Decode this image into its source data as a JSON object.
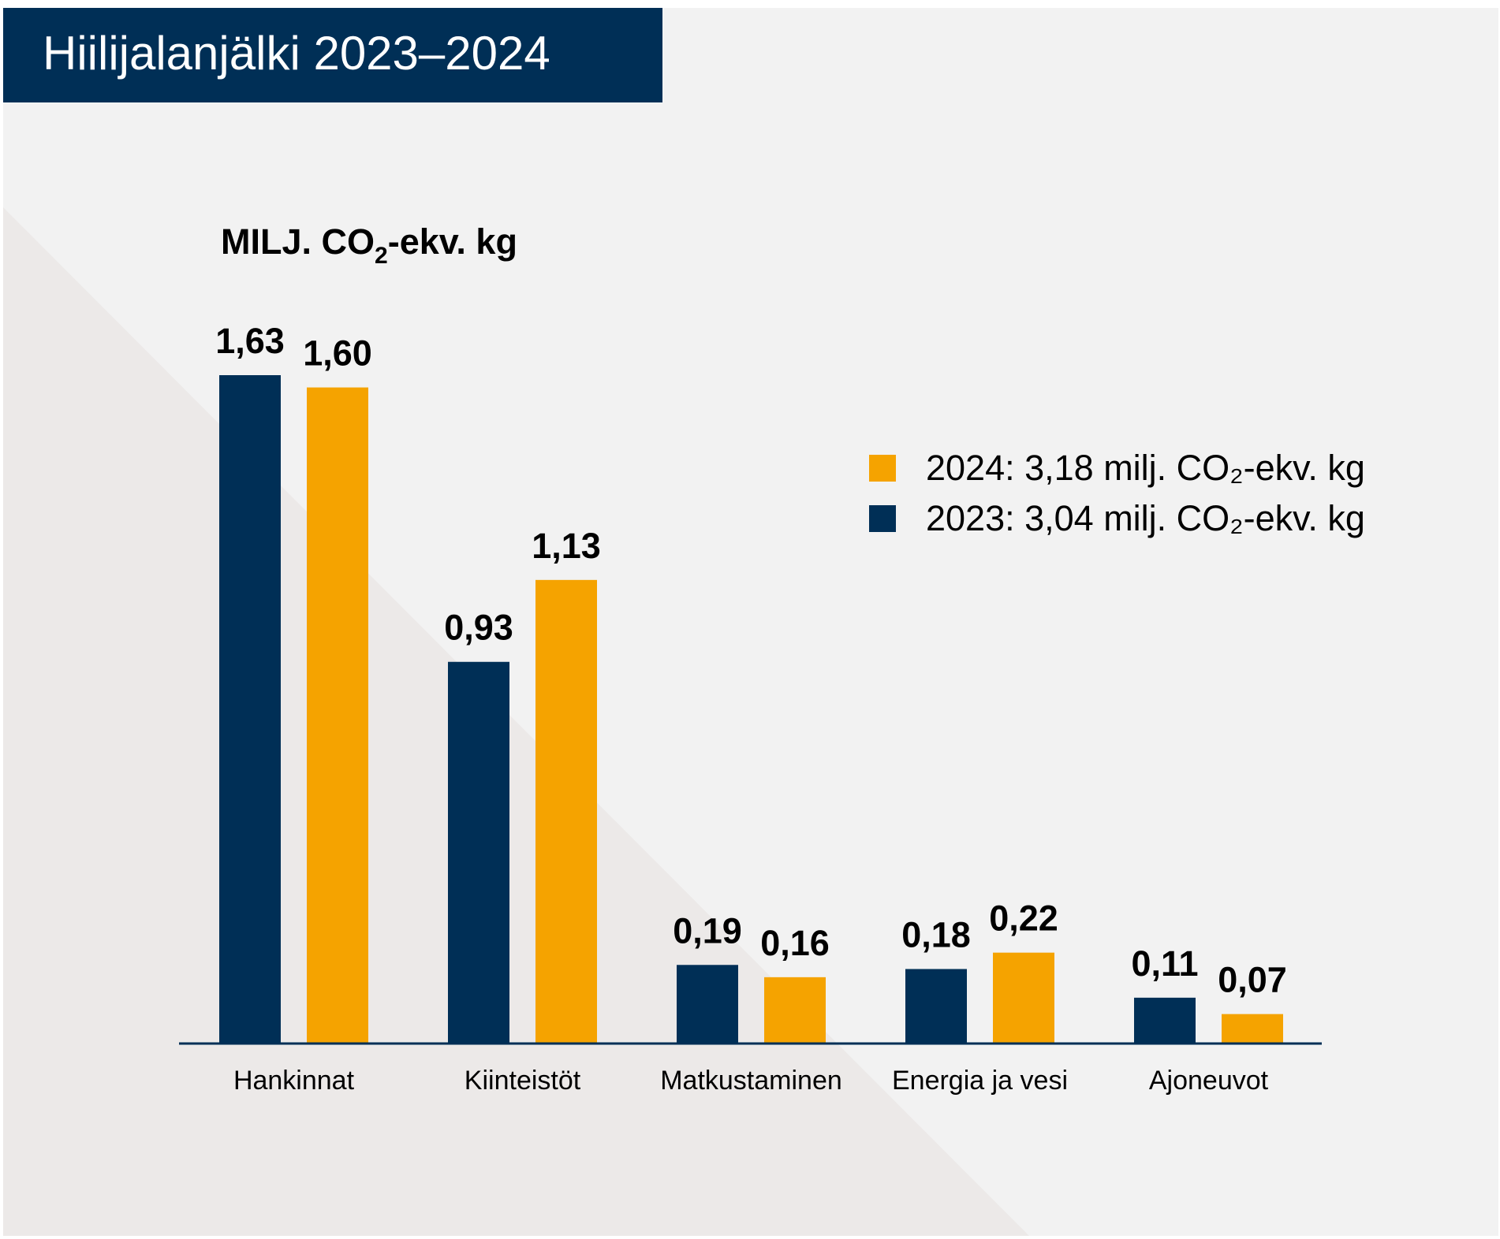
{
  "title": "Hiilijalanjälki 2023–2024",
  "colors": {
    "navy": "#002f56",
    "amber": "#f5a300",
    "background": "#f2f2f2",
    "diagonal": "#ece9e8"
  },
  "chart_data": {
    "type": "bar",
    "unit_label": {
      "main": "MILJ. CO",
      "sub": "2",
      "rest": "-ekv. kg"
    },
    "categories": [
      "Hankinnat",
      "Kiinteistöt",
      "Matkustaminen",
      "Energia ja vesi",
      "Ajoneuvot"
    ],
    "series": [
      {
        "name": "2023: 3,04 milj. CO₂-ekv. kg",
        "color": "#002f56",
        "values": [
          1.63,
          0.93,
          0.19,
          0.18,
          0.11
        ],
        "labels": [
          "1,63",
          "0,93",
          "0,19",
          "0,18",
          "0,11"
        ]
      },
      {
        "name": "2024: 3,18 milj. CO₂-ekv. kg",
        "color": "#f5a300",
        "values": [
          1.6,
          1.13,
          0.16,
          0.22,
          0.07
        ],
        "labels": [
          "1,60",
          "1,13",
          "0,16",
          "0,22",
          "0,07"
        ]
      }
    ],
    "legend": [
      {
        "label": "2024: 3,18 milj. CO₂-ekv. kg",
        "color": "#f5a300"
      },
      {
        "label": "2023: 3,04 milj. CO₂-ekv. kg",
        "color": "#002f56"
      }
    ],
    "legend_position": "top-right",
    "ylim": [
      0,
      1.63
    ],
    "grid": false
  }
}
